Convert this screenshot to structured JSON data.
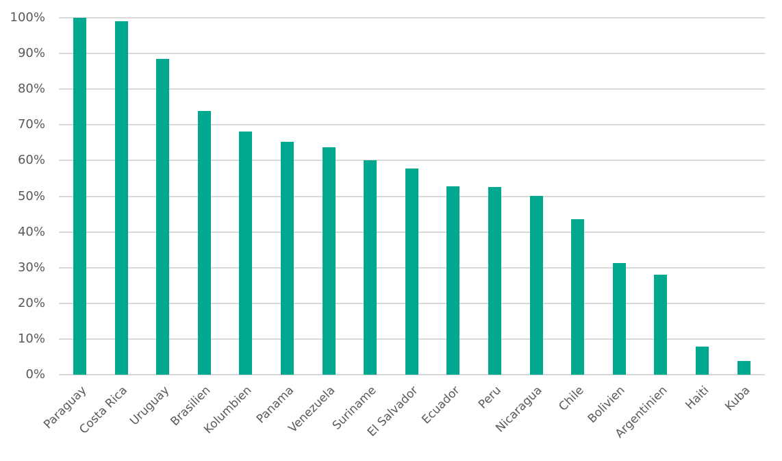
{
  "chart_data": {
    "type": "bar",
    "title": "",
    "xlabel": "",
    "ylabel": "",
    "ylim": [
      0,
      100
    ],
    "y_ticks": [
      "0%",
      "10%",
      "20%",
      "30%",
      "40%",
      "50%",
      "60%",
      "70%",
      "80%",
      "90%",
      "100%"
    ],
    "grid": true,
    "legend": null,
    "bar_color": "#00A88F",
    "categories": [
      "Paraguay",
      "Costa Rica",
      "Uruguay",
      "Brasilien",
      "Kolumbien",
      "Panama",
      "Venezuela",
      "Suriname",
      "El Salvador",
      "Ecuador",
      "Peru",
      "Nicaragua",
      "Chile",
      "Bolivien",
      "Argentinien",
      "Haiti",
      "Kuba"
    ],
    "values": [
      100,
      99,
      88.5,
      73.9,
      68.1,
      65.3,
      63.7,
      60.1,
      57.8,
      52.8,
      52.6,
      50.1,
      43.6,
      31.3,
      28.0,
      7.9,
      3.8
    ]
  }
}
